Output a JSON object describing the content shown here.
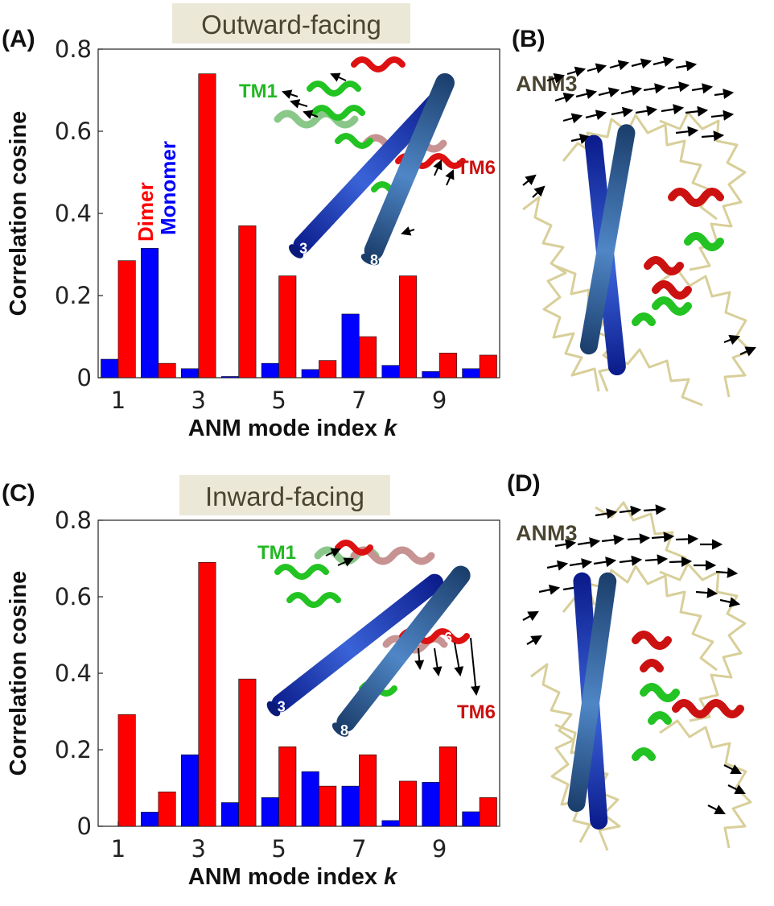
{
  "colors": {
    "dimer": "#ff0000",
    "monomer": "#0000ff",
    "title_box": "#ece8d8",
    "anm_label": "#4a4530",
    "tm1": "#22b822",
    "tm6": "#cc1111"
  },
  "panels": {
    "A": {
      "letter": "(A)",
      "state_title": "Outward-facing",
      "tm1_label": "TM1",
      "tm6_label": "TM6",
      "helix3_label": "3",
      "helix8_label": "8",
      "helix6_label": "6",
      "helix_panel_icons": "helix-structure-icon"
    },
    "B": {
      "letter": "(B)",
      "anm_label": "ANM3"
    },
    "C": {
      "letter": "(C)",
      "state_title": "Inward-facing",
      "tm1_label": "TM1",
      "tm6_label": "TM6",
      "helix3_label": "3",
      "helix8_label": "8",
      "helix6_label": "6"
    },
    "D": {
      "letter": "(D)",
      "anm_label": "ANM3"
    }
  },
  "chart_data": [
    {
      "type": "bar",
      "panel": "A",
      "xlabel": "ANM mode index k",
      "ylabel": "Correlation cosine",
      "ylim": [
        0,
        0.8
      ],
      "yticks": [
        "0",
        "0.2",
        "0.4",
        "0.6",
        "0.8"
      ],
      "xticks": [
        "1",
        "3",
        "5",
        "7",
        "9"
      ],
      "legend": [
        "Dimer",
        "Monomer"
      ],
      "categories": [
        1,
        2,
        3,
        4,
        5,
        6,
        7,
        8,
        9,
        10
      ],
      "series": [
        {
          "name": "Monomer",
          "color": "#0000ff",
          "values": [
            0.045,
            0.315,
            0.022,
            0.003,
            0.035,
            0.02,
            0.155,
            0.03,
            0.015,
            0.022
          ]
        },
        {
          "name": "Dimer",
          "color": "#ff0000",
          "values": [
            0.285,
            0.035,
            0.74,
            0.37,
            0.248,
            0.042,
            0.1,
            0.248,
            0.06,
            0.055
          ]
        }
      ]
    },
    {
      "type": "bar",
      "panel": "C",
      "xlabel": "ANM mode index k",
      "ylabel": "Correlation cosine",
      "ylim": [
        0,
        0.8
      ],
      "yticks": [
        "0",
        "0.2",
        "0.4",
        "0.6",
        "0.8"
      ],
      "xticks": [
        "1",
        "3",
        "5",
        "7",
        "9"
      ],
      "categories": [
        1,
        2,
        3,
        4,
        5,
        6,
        7,
        8,
        9,
        10
      ],
      "series": [
        {
          "name": "Monomer",
          "color": "#0000ff",
          "values": [
            0.0,
            0.037,
            0.187,
            0.062,
            0.075,
            0.143,
            0.105,
            0.015,
            0.115,
            0.038
          ]
        },
        {
          "name": "Dimer",
          "color": "#ff0000",
          "values": [
            0.292,
            0.09,
            0.69,
            0.385,
            0.208,
            0.105,
            0.187,
            0.118,
            0.208,
            0.075
          ]
        }
      ]
    }
  ]
}
